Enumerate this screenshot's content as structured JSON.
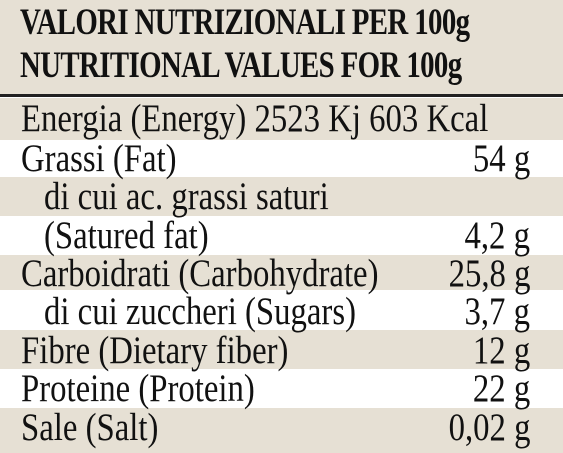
{
  "header": {
    "line1": "VALORI NUTRIZIONALI PER 100g",
    "line2": "NUTRITIONAL VALUES FOR 100g"
  },
  "rows": [
    {
      "label": "Energia (Energy) 2523 Kj  603 Kcal",
      "value": ""
    },
    {
      "label": "Grassi (Fat)",
      "value": "54 g"
    },
    {
      "label": "di cui ac. grassi saturi",
      "value": ""
    },
    {
      "label": "(Satured fat)",
      "value": "4,2 g"
    },
    {
      "label": "Carboidrati (Carbohydrate)",
      "value": "25,8 g"
    },
    {
      "label": "di cui zuccheri (Sugars)",
      "value": "3,7 g"
    },
    {
      "label": "Fibre (Dietary fiber)",
      "value": "12 g"
    },
    {
      "label": "Proteine (Protein)",
      "value": "22 g"
    },
    {
      "label": "Sale (Salt)",
      "value": "0,02 g"
    }
  ]
}
